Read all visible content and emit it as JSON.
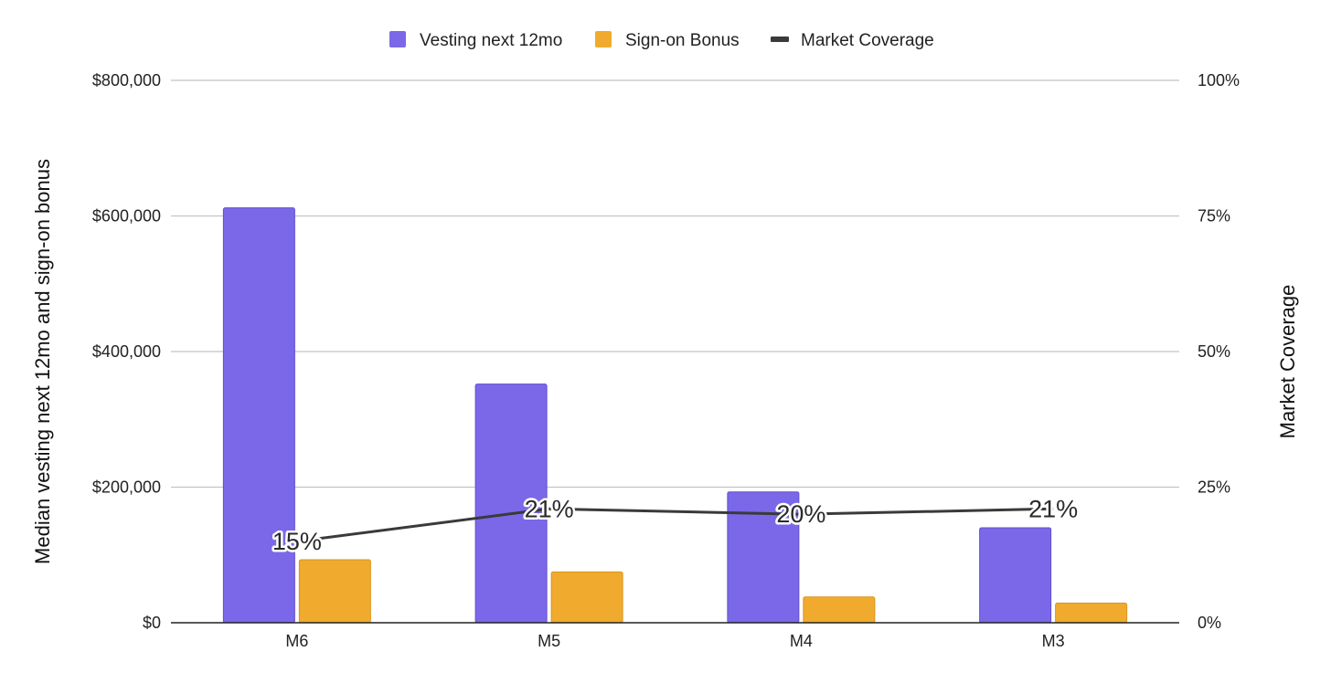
{
  "chart_data": {
    "type": "bar",
    "categories": [
      "M6",
      "M5",
      "M4",
      "M3"
    ],
    "series": [
      {
        "name": "Vesting next 12mo",
        "kind": "bar",
        "axis": "left",
        "color": "#7b68e8",
        "values": [
          612000,
          352000,
          193000,
          140000
        ]
      },
      {
        "name": "Sign-on Bonus",
        "kind": "bar",
        "axis": "left",
        "color": "#f0ab2e",
        "values": [
          93000,
          75000,
          38000,
          29000
        ]
      },
      {
        "name": "Market Coverage",
        "kind": "line",
        "axis": "right",
        "color": "#3a3a3a",
        "values": [
          15,
          21,
          20,
          21
        ],
        "value_labels": [
          "15%",
          "21%",
          "20%",
          "21%"
        ]
      }
    ],
    "y_left": {
      "label": "Median vesting next 12mo and sign-on bonus",
      "lim": [
        0,
        800000
      ],
      "ticks": [
        0,
        200000,
        400000,
        600000,
        800000
      ],
      "tick_labels": [
        "$0",
        "$200,000",
        "$400,000",
        "$600,000",
        "$800,000"
      ]
    },
    "y_right": {
      "label": "Market Coverage",
      "lim": [
        0,
        100
      ],
      "ticks": [
        0,
        25,
        50,
        75,
        100
      ],
      "tick_labels": [
        "0%",
        "25%",
        "50%",
        "75%",
        "100%"
      ]
    },
    "legend": {
      "position": "top-center",
      "entries": [
        "Vesting next 12mo",
        "Sign-on Bonus",
        "Market Coverage"
      ]
    },
    "grid": true
  }
}
